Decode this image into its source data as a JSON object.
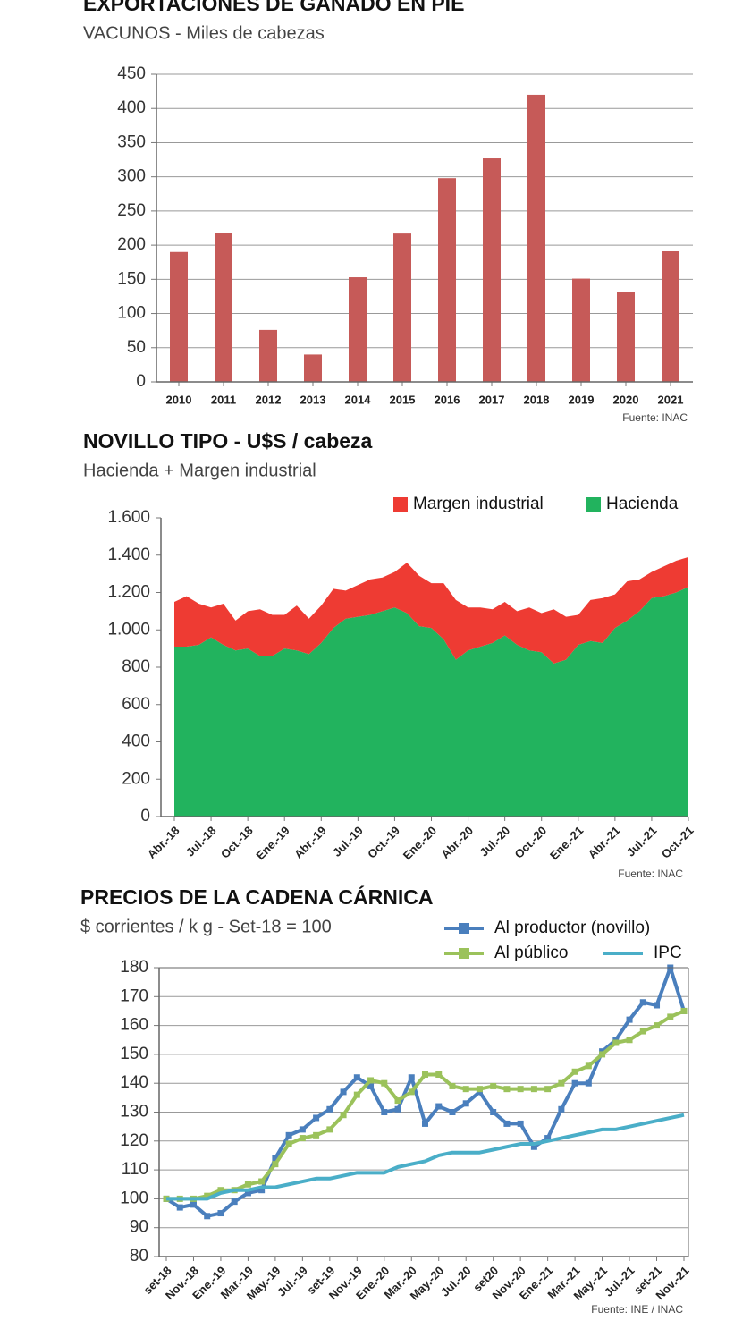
{
  "chart_data": [
    {
      "type": "bar",
      "title": "EXPORTACIONES DE GANADO EN PIE",
      "subtitle": "VACUNOS - Miles de cabezas",
      "source": "Fuente: INAC",
      "categories": [
        "2010",
        "2011",
        "2012",
        "2013",
        "2014",
        "2015",
        "2016",
        "2017",
        "2018",
        "2019",
        "2020",
        "2021"
      ],
      "values": [
        190,
        218,
        76,
        40,
        153,
        217,
        298,
        327,
        420,
        151,
        131,
        191
      ],
      "color": "#c65a58",
      "ylim": [
        0,
        450
      ],
      "yticks": [
        0,
        50,
        100,
        150,
        200,
        250,
        300,
        350,
        400,
        450
      ],
      "grid": true
    },
    {
      "type": "area",
      "stacked": true,
      "title": "NOVILLO TIPO - U$S / cabeza",
      "subtitle": "Hacienda + Margen industrial",
      "source": "Fuente: INAC",
      "categories": [
        "Abr.-18",
        null,
        null,
        "Jul.-18",
        null,
        null,
        "Oct.-18",
        null,
        null,
        "Ene.-19",
        null,
        null,
        "Abr.-19",
        null,
        null,
        "Jul.-19",
        null,
        null,
        "Oct.-19",
        null,
        null,
        "Ene.-20",
        null,
        null,
        "Abr.-20",
        null,
        null,
        "Jul.-20",
        null,
        null,
        "Oct.-20",
        null,
        null,
        "Ene.-21",
        null,
        null,
        "Abr.-21",
        null,
        null,
        "Jul.-21",
        null,
        null,
        "Oct.-21"
      ],
      "series": [
        {
          "name": "Margen industrial",
          "color": "#ee3b33",
          "values": [
            240,
            270,
            220,
            160,
            220,
            160,
            200,
            250,
            220,
            180,
            240,
            190,
            200,
            210,
            150,
            170,
            190,
            180,
            190,
            270,
            270,
            240,
            300,
            320,
            230,
            210,
            180,
            180,
            180,
            230,
            210,
            290,
            230,
            160,
            220,
            240,
            180,
            210,
            170,
            140,
            160,
            170,
            160
          ]
        },
        {
          "name": "Hacienda",
          "color": "#22b35e",
          "values": [
            910,
            910,
            920,
            960,
            920,
            890,
            900,
            860,
            860,
            900,
            890,
            870,
            930,
            1010,
            1060,
            1070,
            1080,
            1100,
            1120,
            1090,
            1020,
            1010,
            950,
            840,
            890,
            910,
            930,
            970,
            920,
            890,
            880,
            820,
            840,
            920,
            940,
            930,
            1010,
            1050,
            1100,
            1170,
            1180,
            1200,
            1230
          ]
        }
      ],
      "ylim": [
        0,
        1600
      ],
      "yticks": [
        0,
        200,
        400,
        600,
        800,
        {
          "value": 1000,
          "label": "1.000"
        },
        {
          "value": 1200,
          "label": "1.200"
        },
        {
          "value": 1400,
          "label": "1.400"
        },
        {
          "value": 1600,
          "label": "1.600"
        }
      ],
      "grid": false
    },
    {
      "type": "line",
      "title": "PRECIOS DE LA CADENA CÁRNICA",
      "subtitle": "$ corrientes / k g - Set-18 = 100",
      "source": "Fuente: INE / INAC",
      "categories": [
        "set-18",
        null,
        "Nov.-18",
        null,
        "Ene.-19",
        null,
        "Mar.-19",
        null,
        "May.-19",
        null,
        "Jul.-19",
        null,
        "set-19",
        null,
        "Nov.-19",
        null,
        "Ene.-20",
        null,
        "Mar.-20",
        null,
        "May.-20",
        null,
        "Jul.-20",
        null,
        "set20",
        null,
        "Nov.-20",
        null,
        "Ene.-21",
        null,
        "Mar.-21",
        null,
        "May.-21",
        null,
        "Jul.-21",
        null,
        "set-21",
        null,
        "Nov.-21"
      ],
      "series": [
        {
          "name": "Al productor (novillo)",
          "color": "#4a7fbd",
          "marker": "square",
          "values": [
            100,
            97,
            98,
            94,
            95,
            99,
            102,
            103,
            114,
            122,
            124,
            128,
            131,
            137,
            142,
            139,
            130,
            131,
            142,
            126,
            132,
            130,
            133,
            137,
            130,
            126,
            126,
            118,
            121,
            131,
            140,
            140,
            151,
            155,
            162,
            168,
            167,
            180,
            165
          ]
        },
        {
          "name": "Al público",
          "color": "#9bc25b",
          "marker": "square",
          "values": [
            100,
            100,
            100,
            101,
            103,
            103,
            105,
            106,
            112,
            119,
            121,
            122,
            124,
            129,
            136,
            141,
            140,
            134,
            137,
            143,
            143,
            139,
            138,
            138,
            139,
            138,
            138,
            138,
            138,
            140,
            144,
            146,
            150,
            154,
            155,
            158,
            160,
            163,
            165
          ]
        },
        {
          "name": "IPC",
          "color": "#4aaec8",
          "values": [
            100,
            100,
            100,
            100,
            102,
            103,
            103,
            104,
            104,
            105,
            106,
            107,
            107,
            108,
            109,
            109,
            109,
            111,
            112,
            113,
            115,
            116,
            116,
            116,
            117,
            118,
            119,
            119,
            120,
            121,
            122,
            123,
            124,
            124,
            125,
            126,
            127,
            128,
            129
          ]
        }
      ],
      "ylim": [
        80,
        180
      ],
      "yticks": [
        80,
        90,
        100,
        110,
        120,
        130,
        140,
        150,
        160,
        170,
        180
      ],
      "grid": true
    }
  ]
}
